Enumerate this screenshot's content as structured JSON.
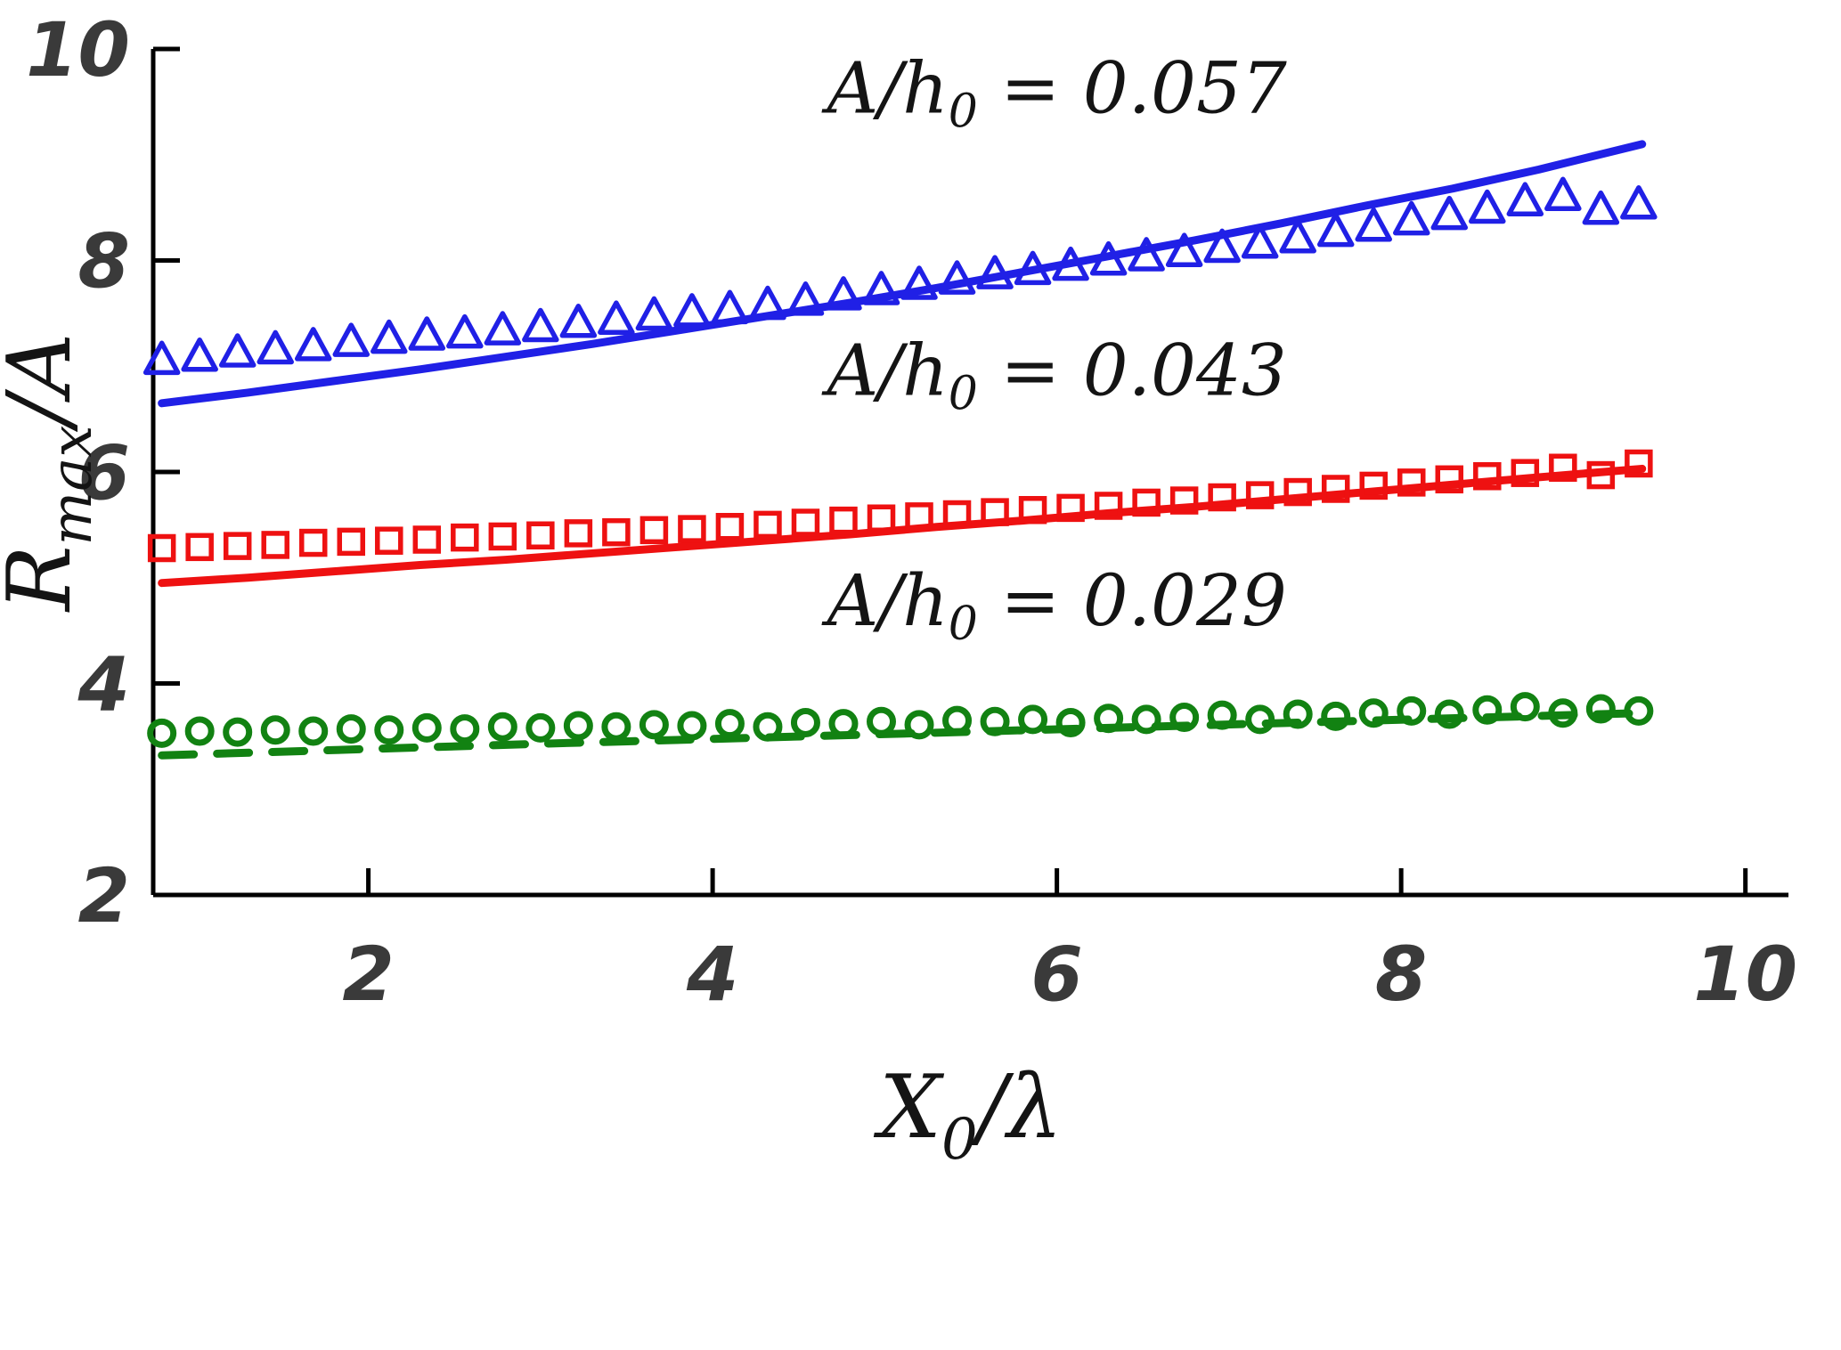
{
  "figure": {
    "background": "#ffffff"
  },
  "chart_data": {
    "type": "scatter",
    "title": "",
    "xlabel": {
      "pre": "X",
      "sub": "0",
      "post": "/λ"
    },
    "ylabel": {
      "pre": "R",
      "sub": "max",
      "post": "/A"
    },
    "xlim": [
      0.75,
      10.25
    ],
    "ylim": [
      2,
      10
    ],
    "xticks": [
      2,
      4,
      6,
      8,
      10
    ],
    "yticks": [
      2,
      4,
      6,
      8,
      10
    ],
    "grid": false,
    "axis_color": "#000000",
    "tick_label_color": "#3a3a3a",
    "annotations": [
      {
        "pre": "A/h",
        "sub": "0",
        "post": " = 0.057",
        "x": 6.0,
        "y": 9.4,
        "color": "#141414"
      },
      {
        "pre": "A/h",
        "sub": "0",
        "post": " = 0.043",
        "x": 6.0,
        "y": 6.73,
        "color": "#141414"
      },
      {
        "pre": "A/h",
        "sub": "0",
        "post": " = 0.029",
        "x": 6.0,
        "y": 4.55,
        "color": "#141414"
      }
    ],
    "marker_x": [
      0.8,
      1.02,
      1.24,
      1.46,
      1.68,
      1.9,
      2.12,
      2.34,
      2.56,
      2.78,
      3.0,
      3.22,
      3.44,
      3.66,
      3.88,
      4.1,
      4.32,
      4.54,
      4.76,
      4.98,
      5.2,
      5.42,
      5.64,
      5.86,
      6.08,
      6.3,
      6.52,
      6.74,
      6.96,
      7.18,
      7.4,
      7.62,
      7.84,
      8.06,
      8.28,
      8.5,
      8.72,
      8.94,
      9.16,
      9.38
    ],
    "series": [
      {
        "id": "data-0057",
        "group": "A/h0 = 0.057",
        "kind": "scatter",
        "marker": "triangle",
        "color": "#2020e6",
        "y": [
          7.05,
          7.08,
          7.12,
          7.15,
          7.18,
          7.22,
          7.25,
          7.28,
          7.3,
          7.33,
          7.36,
          7.4,
          7.43,
          7.47,
          7.5,
          7.53,
          7.57,
          7.61,
          7.66,
          7.71,
          7.76,
          7.81,
          7.86,
          7.9,
          7.94,
          7.99,
          8.03,
          8.07,
          8.11,
          8.15,
          8.2,
          8.26,
          8.31,
          8.37,
          8.42,
          8.48,
          8.55,
          8.6,
          8.47,
          8.52
        ]
      },
      {
        "id": "model-0057",
        "group": "A/h0 = 0.057",
        "kind": "line",
        "style": "solid",
        "color": "#2020e6",
        "x": [
          0.8,
          1.3,
          1.8,
          2.3,
          2.8,
          3.3,
          3.8,
          4.3,
          4.8,
          5.3,
          5.8,
          6.3,
          6.8,
          7.3,
          7.8,
          8.3,
          8.8,
          9.4
        ],
        "y": [
          6.65,
          6.75,
          6.86,
          6.97,
          7.09,
          7.21,
          7.34,
          7.47,
          7.6,
          7.74,
          7.89,
          8.04,
          8.19,
          8.35,
          8.52,
          8.68,
          8.86,
          9.1
        ]
      },
      {
        "id": "data-0043",
        "group": "A/h0 = 0.043",
        "kind": "scatter",
        "marker": "square",
        "color": "#ee1111",
        "y": [
          5.28,
          5.29,
          5.3,
          5.31,
          5.33,
          5.34,
          5.35,
          5.36,
          5.38,
          5.39,
          5.4,
          5.42,
          5.43,
          5.45,
          5.46,
          5.48,
          5.5,
          5.52,
          5.54,
          5.56,
          5.58,
          5.6,
          5.62,
          5.64,
          5.66,
          5.68,
          5.71,
          5.73,
          5.76,
          5.78,
          5.81,
          5.84,
          5.87,
          5.9,
          5.93,
          5.96,
          5.99,
          6.04,
          5.97,
          6.08
        ]
      },
      {
        "id": "model-0043",
        "group": "A/h0 = 0.043",
        "kind": "line",
        "style": "solid",
        "color": "#ee1111",
        "x": [
          0.8,
          1.3,
          1.8,
          2.3,
          2.8,
          3.3,
          3.8,
          4.3,
          4.8,
          5.3,
          5.8,
          6.3,
          6.8,
          7.3,
          7.8,
          8.3,
          8.8,
          9.4
        ],
        "y": [
          4.95,
          5.0,
          5.06,
          5.12,
          5.17,
          5.23,
          5.29,
          5.35,
          5.41,
          5.48,
          5.54,
          5.61,
          5.67,
          5.74,
          5.81,
          5.88,
          5.95,
          6.03
        ]
      },
      {
        "id": "data-0029",
        "group": "A/h0 = 0.029",
        "kind": "scatter",
        "marker": "circle",
        "color": "#128212",
        "y": [
          3.53,
          3.55,
          3.54,
          3.56,
          3.55,
          3.57,
          3.56,
          3.58,
          3.57,
          3.59,
          3.58,
          3.6,
          3.59,
          3.61,
          3.6,
          3.62,
          3.59,
          3.63,
          3.62,
          3.64,
          3.61,
          3.65,
          3.64,
          3.66,
          3.63,
          3.67,
          3.66,
          3.68,
          3.7,
          3.66,
          3.71,
          3.69,
          3.72,
          3.74,
          3.71,
          3.75,
          3.78,
          3.72,
          3.76,
          3.74
        ]
      },
      {
        "id": "model-0029",
        "group": "A/h0 = 0.029",
        "kind": "line",
        "style": "dashed",
        "color": "#128212",
        "x": [
          0.8,
          3.0,
          5.2,
          7.4,
          9.4
        ],
        "y": [
          3.32,
          3.43,
          3.53,
          3.63,
          3.72
        ]
      }
    ]
  }
}
